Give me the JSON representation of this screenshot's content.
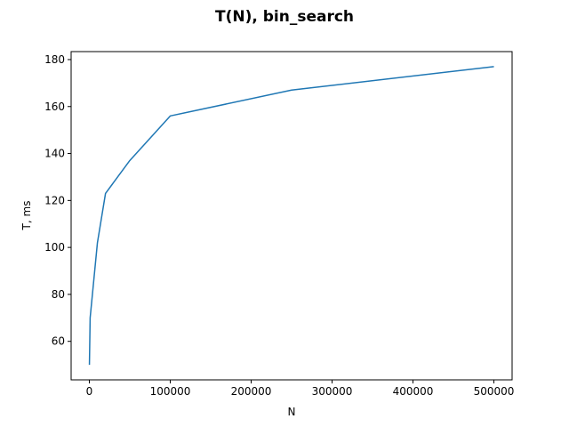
{
  "chart_data": {
    "type": "line",
    "title": "T(N), bin_search",
    "xlabel": "N",
    "ylabel": "T, ms",
    "xlim": [
      -22500,
      522500
    ],
    "ylim": [
      43.6,
      183.4
    ],
    "x_ticks": [
      0,
      100000,
      200000,
      300000,
      400000,
      500000
    ],
    "x_tick_labels": [
      "0",
      "100000",
      "200000",
      "300000",
      "400000",
      "500000"
    ],
    "y_ticks": [
      60,
      80,
      100,
      120,
      140,
      160,
      180
    ],
    "y_tick_labels": [
      "60",
      "80",
      "100",
      "120",
      "140",
      "160",
      "180"
    ],
    "grid": false,
    "series": [
      {
        "color": "#1f77b4",
        "x": [
          100,
          1000,
          10000,
          20000,
          50000,
          100000,
          250000,
          500000
        ],
        "y": [
          50,
          70,
          102,
          123,
          137,
          156,
          167,
          177
        ]
      }
    ]
  }
}
